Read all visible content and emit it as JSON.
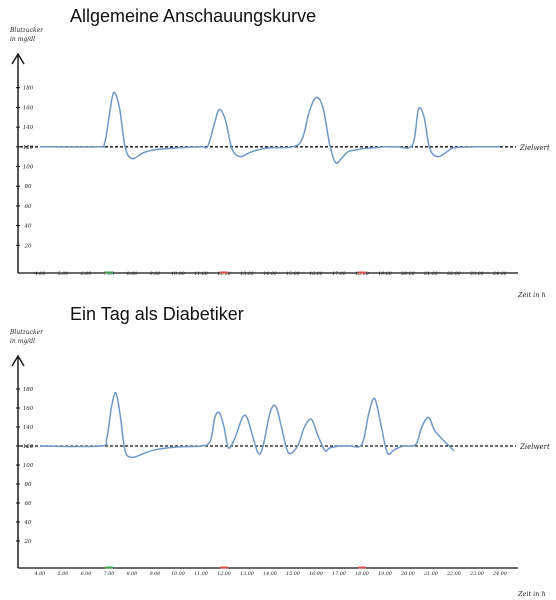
{
  "chart_data": [
    {
      "type": "line",
      "title": "Allgemeine Anschauungskurve",
      "ylabel_lines": [
        "Blutzucker",
        "in mg/dl"
      ],
      "xlabel": "Zeit in h",
      "target_label": "Zielwert",
      "target_value": 120,
      "yticks": [
        20,
        40,
        60,
        80,
        100,
        120,
        140,
        160,
        180
      ],
      "ylim": [
        0,
        200
      ],
      "x_ticks": [
        "4.00",
        "5.00",
        "6.00",
        "7.00",
        "8.00",
        "9.00",
        "10.00",
        "11.00",
        "12.00",
        "13.00",
        "14.00",
        "15.00",
        "16.00",
        "17.00",
        "18.00",
        "19.00",
        "20.00",
        "21.00",
        "22.00",
        "23.00",
        "24.00"
      ],
      "xlim": [
        4,
        24
      ],
      "marked_ticks": [
        {
          "x": 7,
          "color": "#3aa655"
        },
        {
          "x": 12,
          "color": "#e05050"
        },
        {
          "x": 18,
          "color": "#e05050"
        }
      ],
      "line_color": "#6f98c6",
      "series": [
        {
          "x": [
            4,
            6.5,
            6.8,
            7,
            7.2,
            7.45,
            7.7,
            8,
            8.5,
            9,
            10,
            11,
            11.3,
            11.6,
            11.8,
            12.05,
            12.35,
            12.7,
            13.1,
            13.5,
            14,
            15,
            15.4,
            15.7,
            16,
            16.3,
            16.6,
            16.85,
            17.1,
            17.4,
            17.8,
            18,
            18.5,
            19,
            19.5,
            20.2,
            20.45,
            20.7,
            20.95,
            21.3,
            21.7,
            22,
            23,
            24
          ],
          "y": [
            120,
            120,
            123,
            150,
            175,
            160,
            120,
            108,
            114,
            117,
            119,
            120,
            121,
            145,
            158,
            148,
            118,
            110,
            114,
            117,
            119,
            120,
            128,
            155,
            170,
            160,
            122,
            104,
            108,
            115,
            117,
            118,
            119,
            120,
            120,
            122,
            158,
            150,
            118,
            110,
            115,
            119,
            120,
            120
          ]
        }
      ]
    },
    {
      "type": "line",
      "title": "Ein Tag als Diabetiker",
      "ylabel_lines": [
        "Blutzucker",
        "in mg/dl"
      ],
      "xlabel": "Zeit in h",
      "target_label": "Zielwert",
      "target_value": 120,
      "yticks": [
        20,
        40,
        60,
        80,
        100,
        120,
        140,
        160,
        180
      ],
      "ylim": [
        0,
        200
      ],
      "x_ticks": [
        "4.00",
        "5.00",
        "6.00",
        "7.00",
        "8.00",
        "9.00",
        "10.00",
        "11.00",
        "12.00",
        "13.00",
        "14.00",
        "15.00",
        "16.00",
        "17.00",
        "18.00",
        "19.00",
        "20.00",
        "21.00",
        "22.00",
        "23.00",
        "24.00"
      ],
      "xlim": [
        4,
        24
      ],
      "marked_ticks": [
        {
          "x": 7,
          "color": "#3aa655"
        },
        {
          "x": 12,
          "color": "#e05050"
        },
        {
          "x": 18,
          "color": "#e05050"
        }
      ],
      "line_color": "#6f98c6",
      "series": [
        {
          "x": [
            4,
            6.6,
            6.9,
            7.1,
            7.3,
            7.5,
            7.7,
            8,
            8.5,
            9,
            10,
            11,
            11.4,
            11.6,
            11.8,
            12.0,
            12.2,
            12.5,
            12.8,
            13.0,
            13.25,
            13.5,
            13.7,
            14.0,
            14.25,
            14.5,
            14.8,
            15.2,
            15.5,
            15.8,
            16.1,
            16.4,
            16.6,
            17.1,
            17.5,
            18.0,
            18.3,
            18.55,
            18.8,
            19.1,
            19.4,
            19.8,
            20.2,
            20.4,
            20.6,
            20.9,
            21.2,
            22.0
          ],
          "y": [
            120,
            120,
            128,
            160,
            176,
            150,
            115,
            108,
            112,
            116,
            119,
            120,
            125,
            150,
            155,
            140,
            118,
            130,
            150,
            150,
            130,
            112,
            120,
            155,
            162,
            140,
            113,
            120,
            140,
            148,
            130,
            115,
            118,
            120,
            120,
            122,
            155,
            170,
            145,
            113,
            116,
            120,
            120,
            124,
            140,
            150,
            135,
            115
          ]
        }
      ]
    }
  ]
}
